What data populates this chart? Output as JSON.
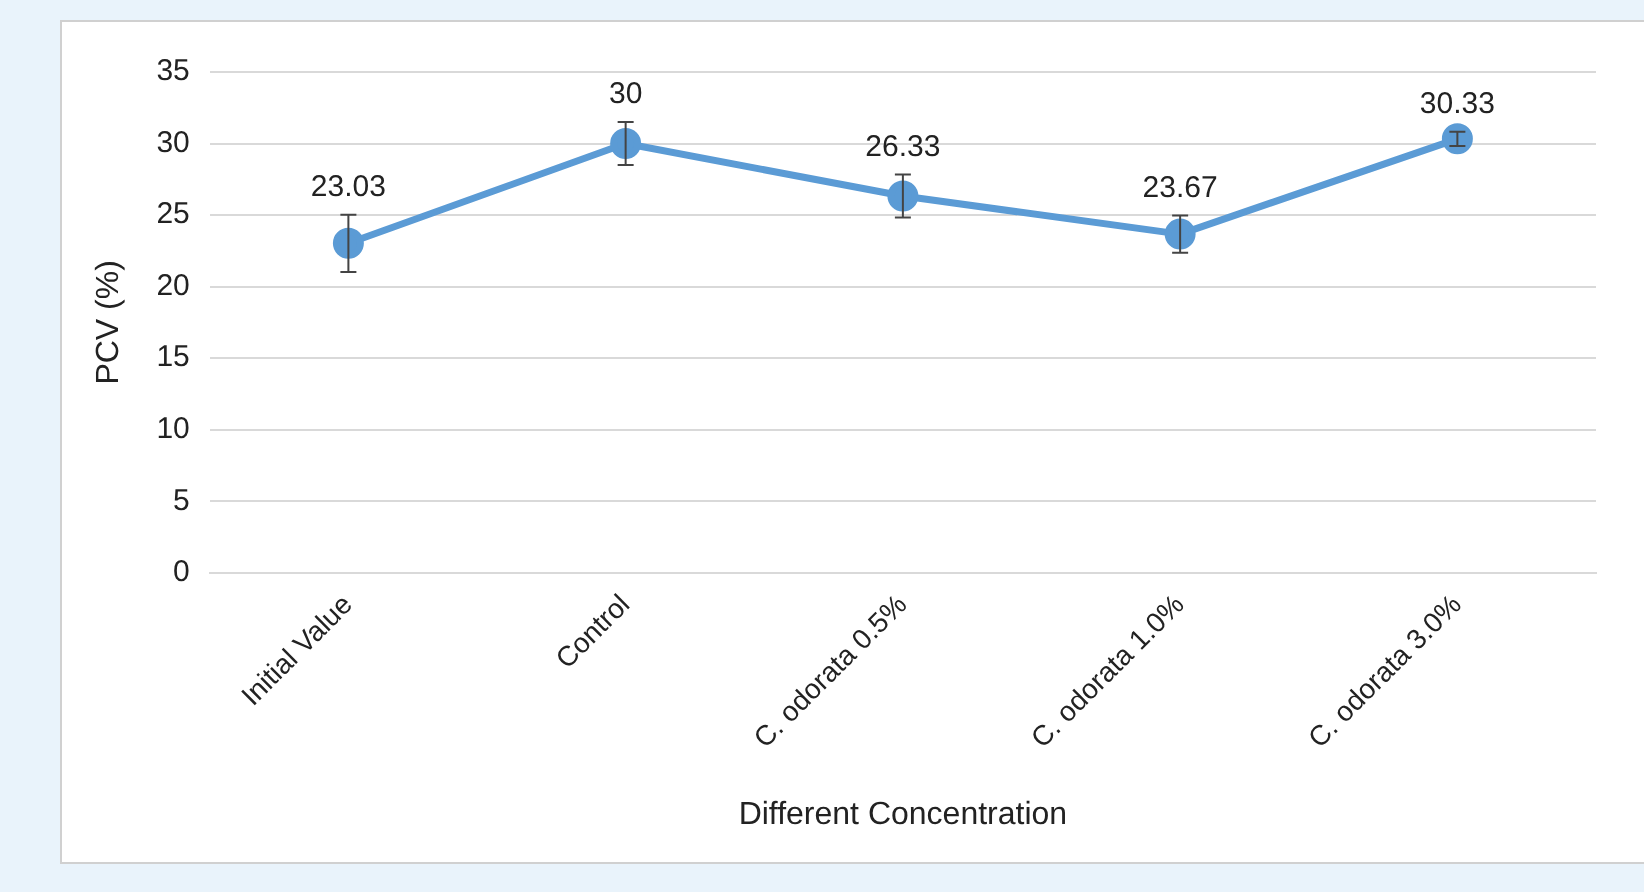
{
  "chart_data": {
    "type": "line",
    "xlabel": "Different Concentration",
    "ylabel": "PCV (%)",
    "categories": [
      "Initial Value",
      "Control",
      "C. odorata 0.5%",
      "C. odorata 1.0%",
      "C. odorata 3.0%"
    ],
    "values": [
      23.03,
      30,
      26.33,
      23.67,
      30.33
    ],
    "errors": [
      2,
      1.5,
      1.5,
      1.3,
      0.5
    ],
    "color": "#5b9bd5",
    "marker": "circle",
    "line_style": "solid",
    "ylim": [
      0,
      35
    ],
    "yticks": [
      0,
      5,
      10,
      15,
      20,
      25,
      30,
      35
    ],
    "grid": "y",
    "legend": false,
    "data_labels": true
  }
}
